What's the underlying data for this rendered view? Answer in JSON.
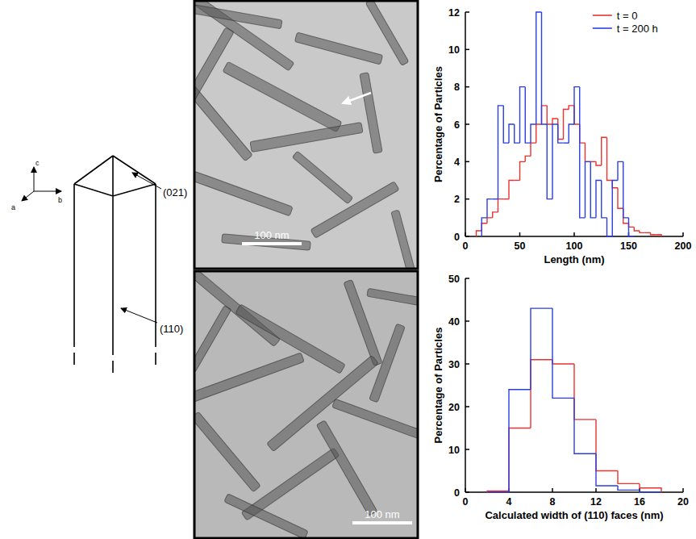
{
  "diagram": {
    "axis_labels": [
      "c",
      "a",
      "b"
    ],
    "face_labels": [
      "(021)",
      "(110)"
    ]
  },
  "micrographs": [
    {
      "scale_bar": "100 nm"
    },
    {
      "scale_bar": "100 nm"
    }
  ],
  "chart_data": [
    {
      "type": "histogram",
      "x_label": "Length (nm)",
      "y_label": "Percentage of Particles",
      "xlim": [
        0,
        200
      ],
      "ylim": [
        0,
        12
      ],
      "xticks": [
        0,
        50,
        100,
        150,
        200
      ],
      "yticks": [
        0,
        2,
        4,
        6,
        8,
        10,
        12
      ],
      "legend": "upper right",
      "series": [
        {
          "name": "t = 0",
          "color": "#e8332f",
          "bins": [
            10,
            15,
            20,
            25,
            30,
            35,
            40,
            45,
            50,
            55,
            60,
            65,
            70,
            75,
            80,
            85,
            90,
            95,
            100,
            105,
            110,
            115,
            120,
            125,
            130,
            135,
            140,
            145,
            150,
            155,
            160,
            165,
            170,
            175,
            180
          ],
          "values": [
            0.3,
            0.7,
            1,
            1.3,
            2,
            2,
            3,
            3,
            4,
            4.3,
            5,
            6,
            7,
            6,
            6.3,
            5.2,
            6.8,
            7,
            6,
            5,
            4,
            4,
            3.8,
            5.3,
            3,
            2.6,
            1.5,
            0.7,
            0.5,
            0.3,
            0.2,
            0.2,
            0.1,
            0.1
          ]
        },
        {
          "name": "t = 200 h",
          "color": "#2b3fe0",
          "bins": [
            15,
            20,
            25,
            30,
            35,
            40,
            45,
            50,
            55,
            60,
            65,
            70,
            75,
            80,
            85,
            90,
            95,
            100,
            105,
            110,
            115,
            120,
            125,
            130,
            135,
            140,
            145,
            150,
            155
          ],
          "values": [
            1,
            2,
            2,
            7,
            5,
            6,
            5,
            8,
            5,
            6,
            12,
            6,
            2,
            6,
            5,
            5,
            6,
            8,
            1,
            4,
            1,
            3,
            1,
            0,
            3,
            4,
            1,
            0
          ]
        }
      ]
    },
    {
      "type": "histogram",
      "x_label": "Calculated width of (110) faces (nm)",
      "y_label": "Percentage of Particles",
      "xlim": [
        0,
        20
      ],
      "ylim": [
        0,
        50
      ],
      "xticks": [
        0,
        4,
        8,
        12,
        16,
        20
      ],
      "yticks": [
        0,
        10,
        20,
        30,
        40,
        50
      ],
      "series": [
        {
          "color": "#e8332f",
          "bins": [
            2,
            4,
            6,
            8,
            10,
            12,
            14,
            16,
            18
          ],
          "values": [
            0.3,
            15,
            31,
            30,
            17,
            5,
            2,
            1
          ]
        },
        {
          "color": "#2b3fe0",
          "bins": [
            2,
            4,
            6,
            8,
            10,
            12,
            14,
            16,
            18
          ],
          "values": [
            0,
            24,
            43,
            22,
            9,
            1.5,
            0.5,
            0
          ]
        }
      ]
    }
  ]
}
